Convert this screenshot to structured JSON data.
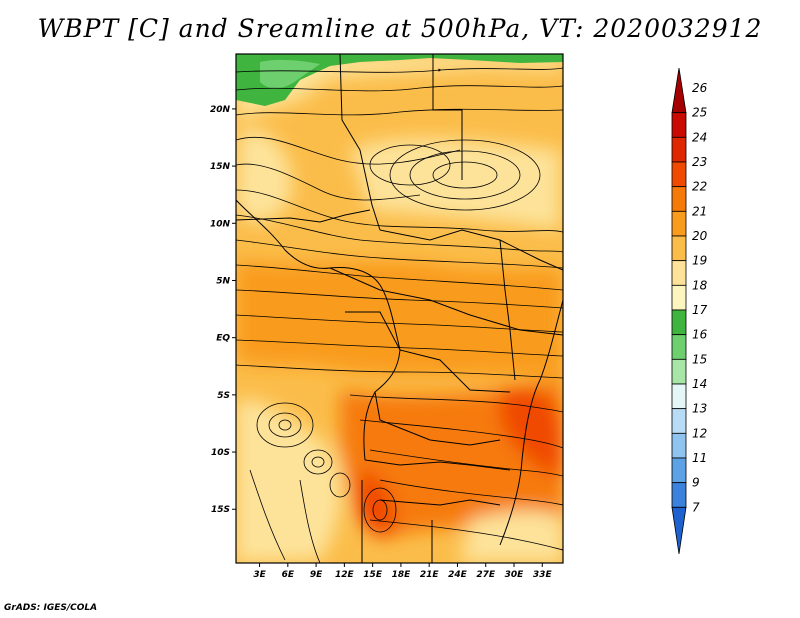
{
  "title": "WBPT [C] and Sreamline at 500hPa, VT: 2020032912",
  "footer": "GrADS: IGES/COLA",
  "lat_labels": [
    {
      "text": "20N",
      "lat": 20
    },
    {
      "text": "15N",
      "lat": 15
    },
    {
      "text": "10N",
      "lat": 10
    },
    {
      "text": "5N",
      "lat": 5
    },
    {
      "text": "EQ",
      "lat": 0
    },
    {
      "text": "5S",
      "lat": -5
    },
    {
      "text": "10S",
      "lat": -10
    },
    {
      "text": "15S",
      "lat": -15
    }
  ],
  "lon_labels": [
    {
      "text": "3E",
      "lon": 3
    },
    {
      "text": "6E",
      "lon": 6
    },
    {
      "text": "9E",
      "lon": 9
    },
    {
      "text": "12E",
      "lon": 12
    },
    {
      "text": "15E",
      "lon": 15
    },
    {
      "text": "18E",
      "lon": 18
    },
    {
      "text": "21E",
      "lon": 21
    },
    {
      "text": "24E",
      "lon": 24
    },
    {
      "text": "27E",
      "lon": 27
    },
    {
      "text": "30E",
      "lon": 30
    },
    {
      "text": "33E",
      "lon": 33
    }
  ],
  "map_extent": {
    "lon_min": 0.5,
    "lon_max": 35.2,
    "lat_min": -19.7,
    "lat_max": 24.8
  },
  "colorbar": {
    "labels": [
      "26",
      "25",
      "24",
      "23",
      "22",
      "21",
      "20",
      "19",
      "18",
      "17",
      "16",
      "15",
      "14",
      "13",
      "12",
      "11",
      "9",
      "7"
    ],
    "colors": [
      "#a50000",
      "#c80a00",
      "#e02800",
      "#f04a00",
      "#f67a0a",
      "#f99b1c",
      "#fbbd4a",
      "#fde39a",
      "#fdf5c0",
      "#3fb43f",
      "#6ecf6e",
      "#a8e6a8",
      "#e4f6f6",
      "#b9dcf6",
      "#8fc4f0",
      "#5ea2e6",
      "#3a82dc",
      "#1e62d0"
    ]
  },
  "field_colors": {
    "green": "#3fb43f",
    "light_green": "#6ecf6e",
    "pale": "#fdeaa8",
    "light_orange": "#fbbd4a",
    "orange": "#f99b1c",
    "dark_orange": "#f67a0a",
    "red_orange": "#f04a00"
  }
}
